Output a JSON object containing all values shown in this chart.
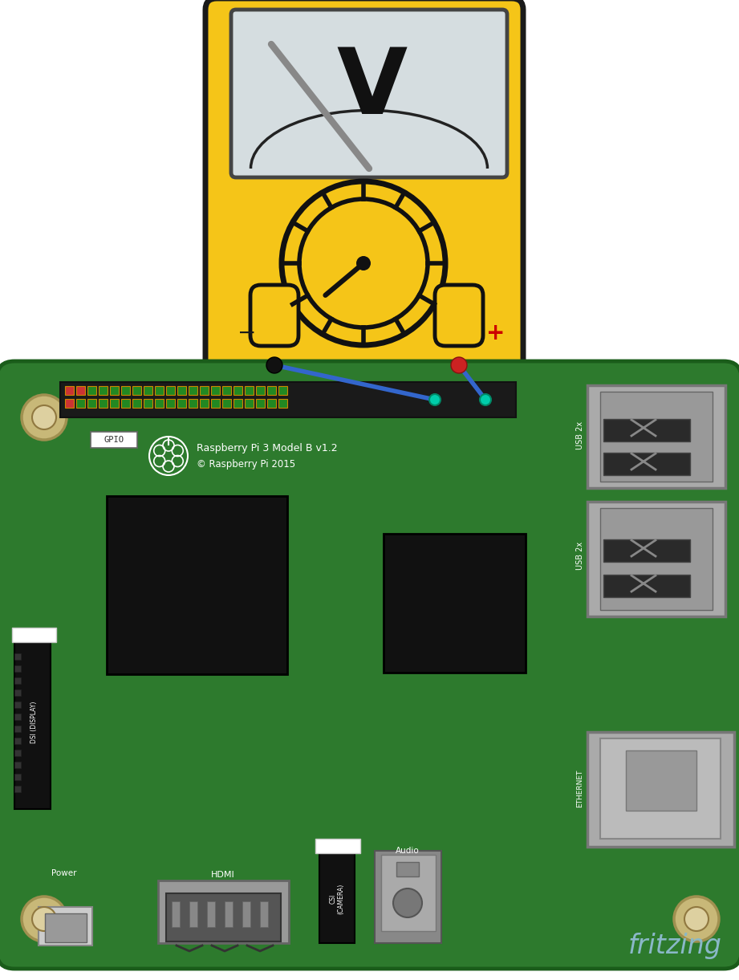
{
  "bg_color": "#ffffff",
  "meter_yellow": "#F5C518",
  "meter_border": "#1a1a1a",
  "screen_color": "#d5dde0",
  "board_green": "#2d7a2d",
  "board_dark": "#1a5c1a",
  "hole_tan": "#c8b878",
  "usb_gray": "#aaaaaa",
  "wire_blue": "#3366cc",
  "wire_teal": "#00bbaa",
  "probe_red": "#cc2222",
  "probe_black": "#111111",
  "pi_label": "Raspberry Pi 3 Model B v1.2",
  "pi_sublabel": "© Raspberry Pi 2015",
  "fritzing_color": "#8ab8c8",
  "fritzing_text": "fritzing"
}
